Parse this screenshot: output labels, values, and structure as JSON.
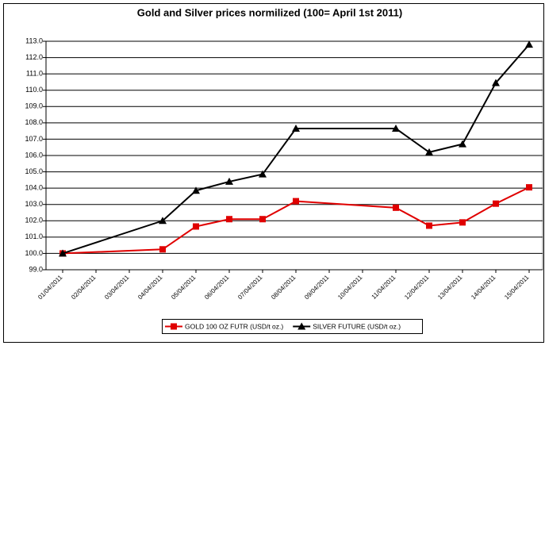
{
  "chart_data": {
    "type": "line",
    "title": "Gold and Silver prices normilized (100= April 1st 2011)",
    "x": [
      "01/04/2011",
      "04/04/2011",
      "05/04/2011",
      "06/04/2011",
      "07/04/2011",
      "08/04/2011",
      "11/04/2011",
      "12/04/2011",
      "13/04/2011",
      "14/04/2011",
      "15/04/2011"
    ],
    "xticks": [
      "01/04/2011",
      "02/04/2011",
      "03/04/2011",
      "04/04/2011",
      "05/04/2011",
      "06/04/2011",
      "07/04/2011",
      "08/04/2011",
      "09/04/2011",
      "10/04/2011",
      "11/04/2011",
      "12/04/2011",
      "13/04/2011",
      "14/04/2011",
      "15/04/2011"
    ],
    "series": [
      {
        "name": "GOLD 100 OZ FUTR (USD/t oz.)",
        "color": "#e00000",
        "marker": "square",
        "values": [
          100.0,
          100.25,
          101.65,
          102.1,
          102.1,
          103.2,
          102.8,
          101.7,
          101.9,
          103.05,
          104.05
        ]
      },
      {
        "name": "SILVER FUTURE (USD/t oz.)",
        "color": "#000000",
        "marker": "triangle",
        "values": [
          100.0,
          102.0,
          103.85,
          104.4,
          104.85,
          107.65,
          107.65,
          106.2,
          106.7,
          110.45,
          112.8
        ]
      }
    ],
    "ylim": [
      99,
      113
    ],
    "yticks": [
      {
        "value": 99,
        "label": "99.0"
      },
      {
        "value": 100,
        "label": "100.0"
      },
      {
        "value": 101,
        "label": "101.0"
      },
      {
        "value": 102,
        "label": "102.0"
      },
      {
        "value": 103,
        "label": "103.0"
      },
      {
        "value": 104,
        "label": "104.0"
      },
      {
        "value": 105,
        "label": "105.0"
      },
      {
        "value": 106,
        "label": "106.0"
      },
      {
        "value": 107,
        "label": "107.0"
      },
      {
        "value": 108,
        "label": "108.0"
      },
      {
        "value": 109,
        "label": "109.0"
      },
      {
        "value": 110,
        "label": "110.0"
      },
      {
        "value": 111,
        "label": "111.0"
      },
      {
        "value": 112,
        "label": "112.0"
      },
      {
        "value": 113,
        "label": "113.0"
      }
    ],
    "grid": true,
    "legend": "bottom"
  }
}
